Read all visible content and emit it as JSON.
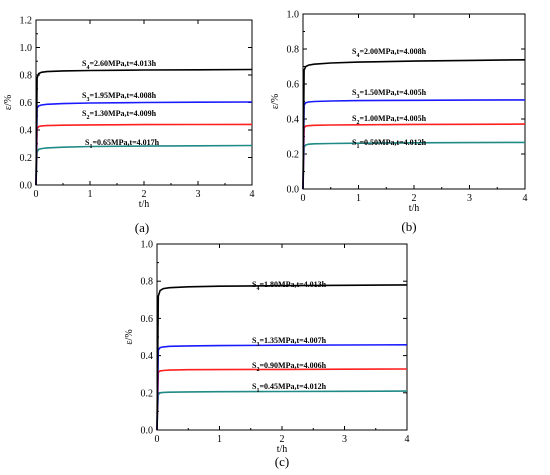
{
  "chart_data": [
    {
      "type": "line",
      "panel_label": "(a)",
      "xlabel": "t/h",
      "ylabel": "ε/%",
      "xlim": [
        0,
        4
      ],
      "ylim": [
        0.0,
        1.2
      ],
      "xticks": [
        "0",
        "1",
        "2",
        "3",
        "4"
      ],
      "yticks": [
        "0.0",
        "0.2",
        "0.4",
        "0.6",
        "0.8",
        "1.0",
        "1.2"
      ],
      "series": [
        {
          "annotation": "S1=0.65MPa,t=4.017h",
          "color": "#1f8a86",
          "x": [
            0,
            0.02,
            0.05,
            0.1,
            0.2,
            0.5,
            1,
            2,
            3,
            4.017
          ],
          "y": [
            0,
            0.24,
            0.26,
            0.265,
            0.27,
            0.275,
            0.28,
            0.283,
            0.285,
            0.287
          ]
        },
        {
          "annotation": "S2=1.30MPa,t=4.009h",
          "color": "#ff1f1f",
          "x": [
            0,
            0.02,
            0.05,
            0.1,
            0.2,
            0.5,
            1,
            2,
            3,
            4.009
          ],
          "y": [
            0,
            0.41,
            0.425,
            0.43,
            0.432,
            0.435,
            0.437,
            0.439,
            0.44,
            0.441
          ]
        },
        {
          "annotation": "S3=1.95MPa,t=4.008h",
          "color": "#1a1aff",
          "x": [
            0,
            0.02,
            0.05,
            0.1,
            0.2,
            0.5,
            1,
            2,
            3,
            4.008
          ],
          "y": [
            0,
            0.56,
            0.575,
            0.582,
            0.587,
            0.592,
            0.596,
            0.6,
            0.602,
            0.604
          ]
        },
        {
          "annotation": "S4=2.60MPa,t=4.013h",
          "color": "#000000",
          "x": [
            0,
            0.02,
            0.05,
            0.1,
            0.2,
            0.5,
            1,
            2,
            3,
            4.013
          ],
          "y": [
            0,
            0.78,
            0.81,
            0.82,
            0.825,
            0.83,
            0.833,
            0.836,
            0.838,
            0.84
          ]
        }
      ]
    },
    {
      "type": "line",
      "panel_label": "(b)",
      "xlabel": "t/h",
      "ylabel": "ε/%",
      "xlim": [
        0,
        4
      ],
      "ylim": [
        0.0,
        1.0
      ],
      "xticks": [
        "0",
        "1",
        "2",
        "3",
        "4"
      ],
      "yticks": [
        "0.0",
        "0.2",
        "0.4",
        "0.6",
        "0.8",
        "1.0"
      ],
      "series": [
        {
          "annotation": "S1=0.50MPa,t=4.012h",
          "color": "#1f8a86",
          "x": [
            0,
            0.02,
            0.05,
            0.1,
            0.2,
            0.5,
            1,
            2,
            3,
            4.012
          ],
          "y": [
            0,
            0.24,
            0.252,
            0.256,
            0.258,
            0.26,
            0.262,
            0.264,
            0.265,
            0.266
          ]
        },
        {
          "annotation": "S2=1.00MPa,t=4.005h",
          "color": "#ff1f1f",
          "x": [
            0,
            0.02,
            0.05,
            0.1,
            0.2,
            0.5,
            1,
            2,
            3,
            4.005
          ],
          "y": [
            0,
            0.35,
            0.36,
            0.362,
            0.364,
            0.366,
            0.367,
            0.369,
            0.37,
            0.371
          ]
        },
        {
          "annotation": "S3=1.50MPa,t=4.005h",
          "color": "#1a1aff",
          "x": [
            0,
            0.02,
            0.05,
            0.1,
            0.2,
            0.5,
            1,
            2,
            3,
            4.005
          ],
          "y": [
            0,
            0.48,
            0.493,
            0.497,
            0.5,
            0.503,
            0.505,
            0.507,
            0.508,
            0.509
          ]
        },
        {
          "annotation": "S4=2.00MPa,t=4.008h",
          "color": "#000000",
          "x": [
            0,
            0.02,
            0.05,
            0.1,
            0.2,
            0.5,
            1,
            2,
            3,
            4.008
          ],
          "y": [
            0,
            0.68,
            0.7,
            0.708,
            0.713,
            0.72,
            0.725,
            0.731,
            0.735,
            0.738
          ]
        }
      ]
    },
    {
      "type": "line",
      "panel_label": "(c)",
      "xlabel": "t/h",
      "ylabel": "ε/%",
      "xlim": [
        0,
        4
      ],
      "ylim": [
        0.0,
        1.0
      ],
      "xticks": [
        "0",
        "1",
        "2",
        "3",
        "4"
      ],
      "yticks": [
        "0.0",
        "0.2",
        "0.4",
        "0.6",
        "0.8",
        "1.0"
      ],
      "series": [
        {
          "annotation": "S1=0.45MPa,t=4.012h",
          "color": "#1f8a86",
          "x": [
            0,
            0.02,
            0.05,
            0.1,
            0.2,
            0.5,
            1,
            2,
            3,
            4.012
          ],
          "y": [
            0,
            0.19,
            0.2,
            0.202,
            0.203,
            0.205,
            0.206,
            0.207,
            0.208,
            0.209
          ]
        },
        {
          "annotation": "S2=0.90MPa,t=4.006h",
          "color": "#ff1f1f",
          "x": [
            0,
            0.02,
            0.05,
            0.1,
            0.2,
            0.5,
            1,
            2,
            3,
            4.006
          ],
          "y": [
            0,
            0.31,
            0.318,
            0.32,
            0.322,
            0.324,
            0.325,
            0.326,
            0.327,
            0.328
          ]
        },
        {
          "annotation": "S3=1.35MPa,t=4.007h",
          "color": "#1a1aff",
          "x": [
            0,
            0.02,
            0.05,
            0.1,
            0.2,
            0.5,
            1,
            2,
            3,
            4.007
          ],
          "y": [
            0,
            0.43,
            0.443,
            0.447,
            0.45,
            0.452,
            0.454,
            0.456,
            0.457,
            0.458
          ]
        },
        {
          "annotation": "S4=1.80MPa,t=4.013h",
          "color": "#000000",
          "x": [
            0,
            0.02,
            0.05,
            0.1,
            0.2,
            0.5,
            1,
            2,
            3,
            4.013
          ],
          "y": [
            0,
            0.72,
            0.75,
            0.76,
            0.765,
            0.77,
            0.773,
            0.776,
            0.778,
            0.78
          ]
        }
      ]
    }
  ]
}
